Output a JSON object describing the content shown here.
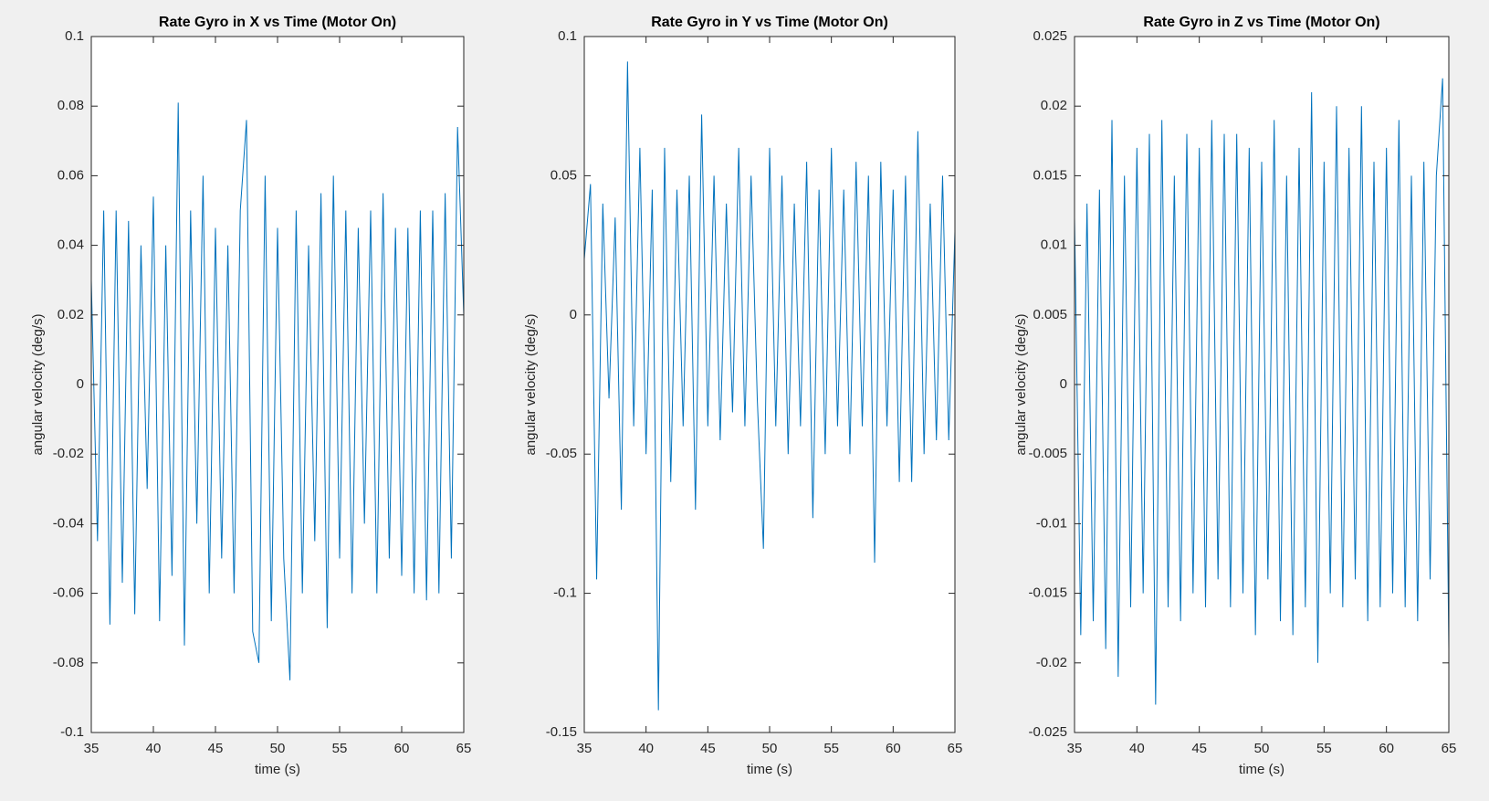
{
  "chart_data": [
    {
      "type": "line",
      "title": "Rate Gyro in X vs Time (Motor On)",
      "xlabel": "time (s)",
      "ylabel": "angular velocity (deg/s)",
      "x": [
        35,
        35.5,
        36,
        36.5,
        37,
        37.5,
        38,
        38.5,
        39,
        39.5,
        40,
        40.5,
        41,
        41.5,
        42,
        42.5,
        43,
        43.5,
        44,
        44.5,
        45,
        45.5,
        46,
        46.5,
        47,
        47.5,
        48,
        48.5,
        49,
        49.5,
        50,
        50.5,
        51,
        51.5,
        52,
        52.5,
        53,
        53.5,
        54,
        54.5,
        55,
        55.5,
        56,
        56.5,
        57,
        57.5,
        58,
        58.5,
        59,
        59.5,
        60,
        60.5,
        61,
        61.5,
        62,
        62.5,
        63,
        63.5,
        64,
        64.5,
        65
      ],
      "series": [
        {
          "color": "#0072bd",
          "values": [
            0.03,
            -0.045,
            0.05,
            -0.069,
            0.05,
            -0.057,
            0.047,
            -0.066,
            0.04,
            -0.03,
            0.054,
            -0.068,
            0.04,
            -0.055,
            0.081,
            -0.075,
            0.05,
            -0.04,
            0.06,
            -0.06,
            0.045,
            -0.05,
            0.04,
            -0.06,
            0.05,
            0.076,
            -0.071,
            -0.08,
            0.06,
            -0.068,
            0.045,
            -0.05,
            -0.085,
            0.05,
            -0.06,
            0.04,
            -0.045,
            0.055,
            -0.07,
            0.06,
            -0.05,
            0.05,
            -0.06,
            0.045,
            -0.04,
            0.05,
            -0.06,
            0.055,
            -0.05,
            0.045,
            -0.055,
            0.045,
            -0.06,
            0.05,
            -0.062,
            0.05,
            -0.06,
            0.055,
            -0.05,
            0.074,
            0.02
          ]
        }
      ],
      "xlim": [
        35,
        65
      ],
      "ylim": [
        -0.1,
        0.1
      ],
      "xticks": [
        35,
        40,
        45,
        50,
        55,
        60,
        65
      ],
      "yticks": [
        -0.1,
        -0.08,
        -0.06,
        -0.04,
        -0.02,
        0,
        0.02,
        0.04,
        0.06,
        0.08,
        0.1
      ]
    },
    {
      "type": "line",
      "title": "Rate Gyro in Y vs Time (Motor On)",
      "xlabel": "time (s)",
      "ylabel": "angular velocity (deg/s)",
      "x": [
        35,
        35.5,
        36,
        36.5,
        37,
        37.5,
        38,
        38.5,
        39,
        39.5,
        40,
        40.5,
        41,
        41.5,
        42,
        42.5,
        43,
        43.5,
        44,
        44.5,
        45,
        45.5,
        46,
        46.5,
        47,
        47.5,
        48,
        48.5,
        49,
        49.5,
        50,
        50.5,
        51,
        51.5,
        52,
        52.5,
        53,
        53.5,
        54,
        54.5,
        55,
        55.5,
        56,
        56.5,
        57,
        57.5,
        58,
        58.5,
        59,
        59.5,
        60,
        60.5,
        61,
        61.5,
        62,
        62.5,
        63,
        63.5,
        64,
        64.5,
        65
      ],
      "series": [
        {
          "color": "#0072bd",
          "values": [
            0.02,
            0.047,
            -0.095,
            0.04,
            -0.03,
            0.035,
            -0.07,
            0.091,
            -0.04,
            0.06,
            -0.05,
            0.045,
            -0.142,
            0.06,
            -0.06,
            0.045,
            -0.04,
            0.05,
            -0.07,
            0.072,
            -0.04,
            0.05,
            -0.045,
            0.04,
            -0.035,
            0.06,
            -0.04,
            0.05,
            -0.03,
            -0.084,
            0.06,
            -0.04,
            0.05,
            -0.05,
            0.04,
            -0.04,
            0.055,
            -0.073,
            0.045,
            -0.05,
            0.06,
            -0.04,
            0.045,
            -0.05,
            0.055,
            -0.04,
            0.05,
            -0.089,
            0.055,
            -0.04,
            0.045,
            -0.06,
            0.05,
            -0.06,
            0.066,
            -0.05,
            0.04,
            -0.045,
            0.05,
            -0.045,
            0.03
          ]
        }
      ],
      "xlim": [
        35,
        65
      ],
      "ylim": [
        -0.15,
        0.1
      ],
      "xticks": [
        35,
        40,
        45,
        50,
        55,
        60,
        65
      ],
      "yticks": [
        -0.15,
        -0.1,
        -0.05,
        0,
        0.05,
        0.1
      ]
    },
    {
      "type": "line",
      "title": "Rate Gyro in Z vs Time (Motor On)",
      "xlabel": "time (s)",
      "ylabel": "angular velocity (deg/s)",
      "x": [
        35,
        35.5,
        36,
        36.5,
        37,
        37.5,
        38,
        38.5,
        39,
        39.5,
        40,
        40.5,
        41,
        41.5,
        42,
        42.5,
        43,
        43.5,
        44,
        44.5,
        45,
        45.5,
        46,
        46.5,
        47,
        47.5,
        48,
        48.5,
        49,
        49.5,
        50,
        50.5,
        51,
        51.5,
        52,
        52.5,
        53,
        53.5,
        54,
        54.5,
        55,
        55.5,
        56,
        56.5,
        57,
        57.5,
        58,
        58.5,
        59,
        59.5,
        60,
        60.5,
        61,
        61.5,
        62,
        62.5,
        63,
        63.5,
        64,
        64.5,
        65
      ],
      "series": [
        {
          "color": "#0072bd",
          "values": [
            0.012,
            -0.018,
            0.013,
            -0.017,
            0.014,
            -0.019,
            0.019,
            -0.021,
            0.015,
            -0.016,
            0.017,
            -0.015,
            0.018,
            -0.023,
            0.019,
            -0.016,
            0.015,
            -0.017,
            0.018,
            -0.015,
            0.017,
            -0.016,
            0.019,
            -0.014,
            0.018,
            -0.016,
            0.018,
            -0.015,
            0.017,
            -0.018,
            0.016,
            -0.014,
            0.019,
            -0.017,
            0.015,
            -0.018,
            0.017,
            -0.016,
            0.021,
            -0.02,
            0.016,
            -0.015,
            0.02,
            -0.016,
            0.017,
            -0.014,
            0.02,
            -0.017,
            0.016,
            -0.016,
            0.017,
            -0.015,
            0.019,
            -0.016,
            0.015,
            -0.017,
            0.016,
            -0.014,
            0.015,
            0.022,
            -0.019
          ]
        }
      ],
      "xlim": [
        35,
        65
      ],
      "ylim": [
        -0.025,
        0.025
      ],
      "xticks": [
        35,
        40,
        45,
        50,
        55,
        60,
        65
      ],
      "yticks": [
        -0.025,
        -0.02,
        -0.015,
        -0.01,
        -0.005,
        0,
        0.005,
        0.01,
        0.015,
        0.02,
        0.025
      ]
    }
  ]
}
